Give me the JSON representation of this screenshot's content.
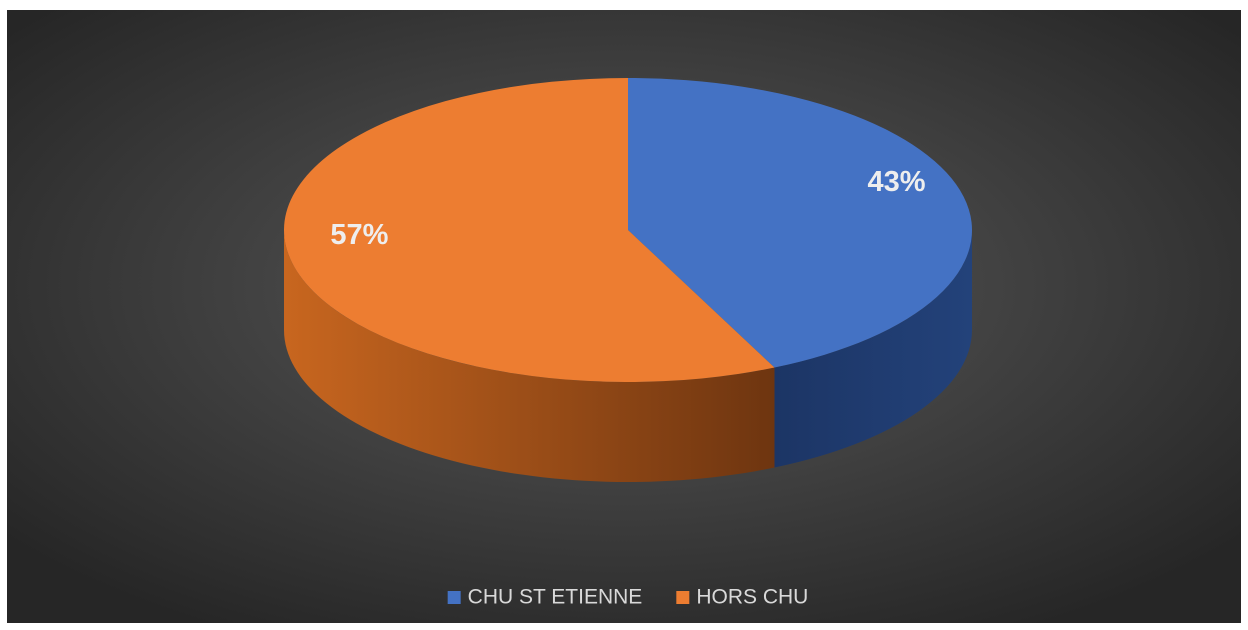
{
  "chart_data": {
    "type": "pie",
    "categories": [
      "CHU ST ETIENNE",
      "HORS CHU"
    ],
    "values": [
      43,
      57
    ],
    "value_labels": [
      "43%",
      "57%"
    ],
    "colors": [
      "#4472c4",
      "#ed7d31"
    ],
    "legend": "bottom"
  }
}
